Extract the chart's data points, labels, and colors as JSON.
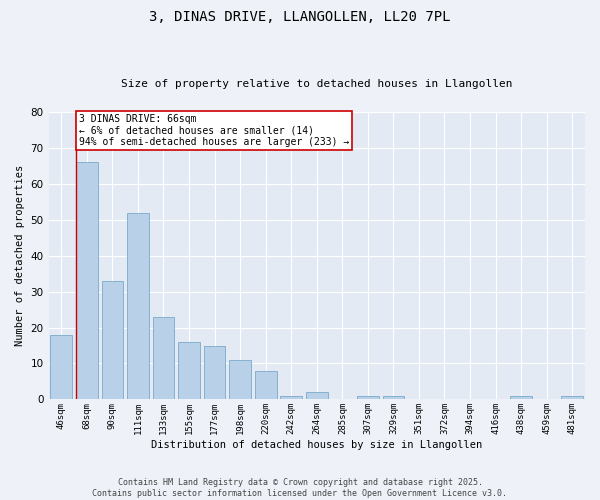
{
  "title": "3, DINAS DRIVE, LLANGOLLEN, LL20 7PL",
  "subtitle": "Size of property relative to detached houses in Llangollen",
  "xlabel": "Distribution of detached houses by size in Llangollen",
  "ylabel": "Number of detached properties",
  "categories": [
    "46sqm",
    "68sqm",
    "90sqm",
    "111sqm",
    "133sqm",
    "155sqm",
    "177sqm",
    "198sqm",
    "220sqm",
    "242sqm",
    "264sqm",
    "285sqm",
    "307sqm",
    "329sqm",
    "351sqm",
    "372sqm",
    "394sqm",
    "416sqm",
    "438sqm",
    "459sqm",
    "481sqm"
  ],
  "values": [
    18,
    66,
    33,
    52,
    23,
    16,
    15,
    11,
    8,
    1,
    2,
    0,
    1,
    1,
    0,
    0,
    0,
    0,
    1,
    0,
    1
  ],
  "bar_color": "#b8d0e8",
  "bar_edge_color": "#7aaaca",
  "highlight_line_color": "#cc0000",
  "annotation_text": "3 DINAS DRIVE: 66sqm\n← 6% of detached houses are smaller (14)\n94% of semi-detached houses are larger (233) →",
  "annotation_box_color": "#ffffff",
  "annotation_box_edge": "#cc0000",
  "footer_line1": "Contains HM Land Registry data © Crown copyright and database right 2025.",
  "footer_line2": "Contains public sector information licensed under the Open Government Licence v3.0.",
  "ylim": [
    0,
    80
  ],
  "yticks": [
    0,
    10,
    20,
    30,
    40,
    50,
    60,
    70,
    80
  ],
  "bg_color": "#eef2f8",
  "plot_bg_color": "#e4eaf4"
}
